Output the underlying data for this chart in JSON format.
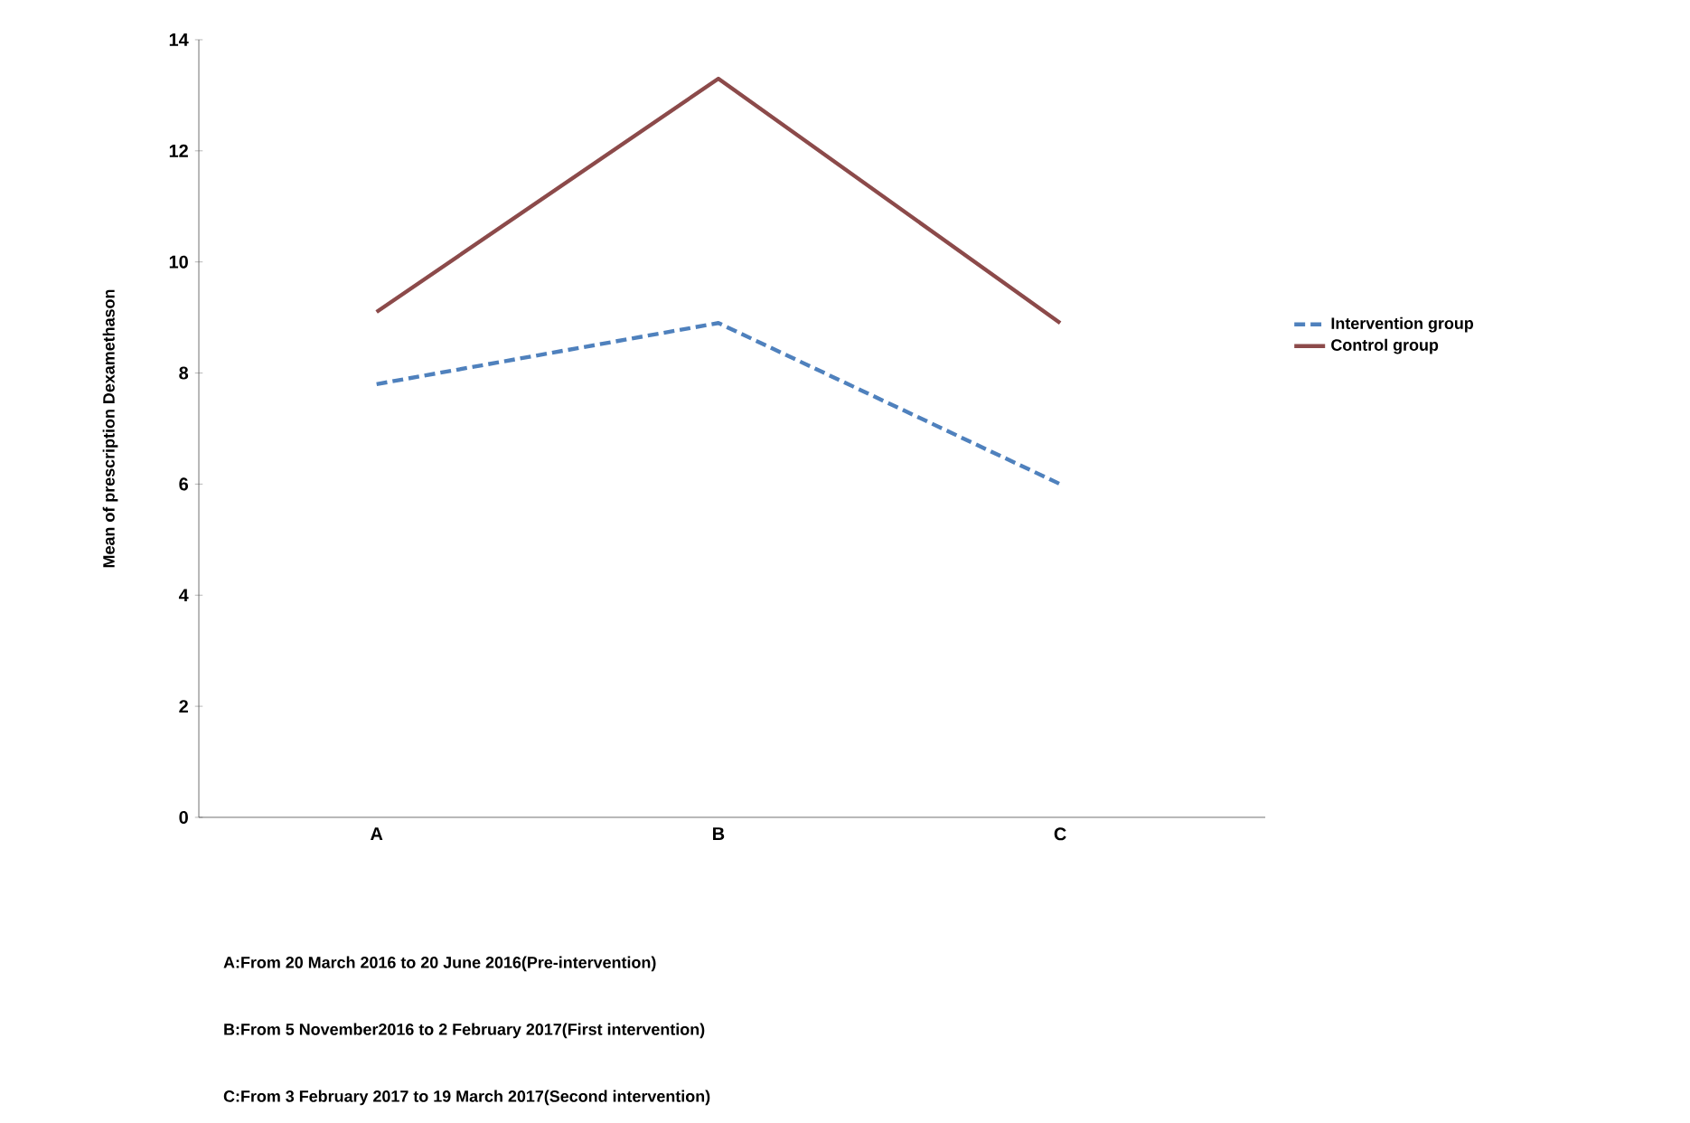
{
  "chart_data": {
    "type": "line",
    "ylabel": "Mean of prescription Dexamethason",
    "categories": [
      "A",
      "B",
      "C"
    ],
    "series": [
      {
        "name": "Intervention group",
        "color": "#4f81bd",
        "line_style": "dashed",
        "values": [
          7.8,
          8.9,
          6.0
        ]
      },
      {
        "name": "Control group",
        "color": "#8c4a4a",
        "line_style": "solid",
        "values": [
          9.1,
          13.3,
          8.9
        ]
      }
    ],
    "ylim": [
      0,
      14
    ],
    "yticks": [
      0,
      2,
      4,
      6,
      8,
      10,
      12,
      14
    ],
    "grid": false,
    "legend": "right",
    "marker": "none",
    "annotations": [
      "A:From 20 March 2016 to 20 June 2016(Pre-intervention)",
      "B:From 5 November2016 to 2 February 2017(First intervention)",
      "C:From 3 February 2017 to 19 March 2017(Second intervention)"
    ]
  }
}
